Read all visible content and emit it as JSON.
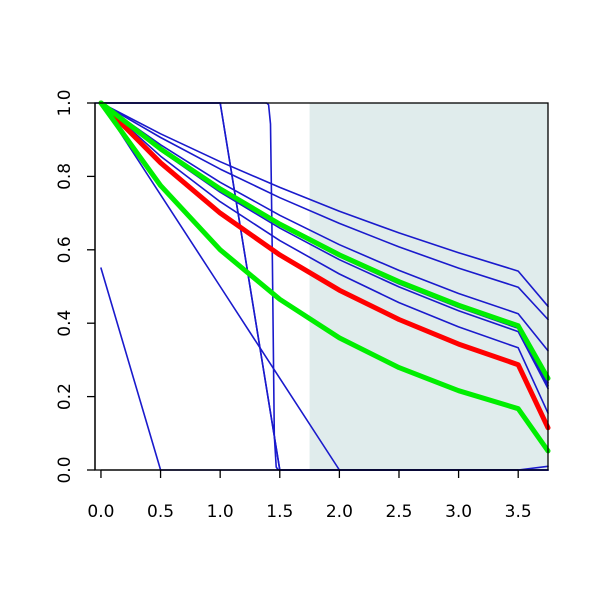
{
  "chart_data": {
    "type": "line",
    "title": "",
    "xlabel": "",
    "ylabel": "",
    "xlim": [
      -0.05,
      3.75
    ],
    "ylim": [
      0.0,
      1.0
    ],
    "x_ticks": [
      0.0,
      0.5,
      1.0,
      1.5,
      2.0,
      2.5,
      3.0,
      3.5
    ],
    "x_tick_labels": [
      "0.0",
      "0.5",
      "1.0",
      "1.5",
      "2.0",
      "2.5",
      "3.0",
      "3.5"
    ],
    "y_ticks": [
      0.0,
      0.2,
      0.4,
      0.6,
      0.8,
      1.0
    ],
    "y_tick_labels": [
      "0.0",
      "0.2",
      "0.4",
      "0.6",
      "0.8",
      "1.0"
    ],
    "grid": false,
    "legend": "none",
    "shaded_region": {
      "x_from": 1.75,
      "x_to": 3.75,
      "color": "#e0ecec"
    },
    "colors": {
      "blue": "#1a1acc",
      "red": "#ff0000",
      "green": "#00ee00"
    },
    "series": [
      {
        "color": "blue",
        "style": "thin",
        "x": [
          0,
          0.5,
          1.0,
          1.5,
          2.0,
          2.5,
          3.0,
          3.5,
          3.75
        ],
        "y": [
          1.0,
          0.8,
          0.6,
          0.4,
          0.2,
          0.0,
          0.0,
          0.0,
          0.0
        ],
        "note_shape": "logistic_step"
      },
      {
        "color": "blue",
        "style": "thin",
        "x": [
          0,
          0.5,
          1.0,
          1.5,
          2.0,
          2.5,
          3.0,
          3.5,
          3.75
        ],
        "y": [
          1.0,
          0.916,
          0.84,
          0.77,
          0.705,
          0.646,
          0.592,
          0.542,
          0.446
        ]
      },
      {
        "color": "blue",
        "style": "thin",
        "x": [
          0,
          0.5,
          1.0,
          1.5,
          2.0,
          2.5,
          3.0,
          3.5,
          3.75
        ],
        "y": [
          1.0,
          0.906,
          0.82,
          0.742,
          0.672,
          0.608,
          0.55,
          0.498,
          0.41
        ]
      },
      {
        "color": "blue",
        "style": "thin",
        "x": [
          0,
          0.5,
          1.0,
          1.5,
          2.0,
          2.5,
          3.0,
          3.5,
          3.75
        ],
        "y": [
          1.0,
          0.886,
          0.784,
          0.694,
          0.614,
          0.544,
          0.481,
          0.426,
          0.325
        ]
      },
      {
        "color": "blue",
        "style": "thin",
        "x": [
          0,
          0.5,
          1.0,
          1.5,
          2.0,
          2.5,
          3.0,
          3.5,
          3.75
        ],
        "y": [
          1.0,
          0.876,
          0.767,
          0.672,
          0.589,
          0.516,
          0.452,
          0.396,
          0.238
        ]
      },
      {
        "color": "blue",
        "style": "thin",
        "x": [
          0,
          0.5,
          1.0,
          1.5,
          2.0,
          2.5,
          3.0,
          3.5,
          3.75
        ],
        "y": [
          1.0,
          0.873,
          0.762,
          0.666,
          0.581,
          0.507,
          0.443,
          0.386,
          0.23
        ]
      },
      {
        "color": "blue",
        "style": "thin",
        "x": [
          0,
          0.5,
          1.0,
          1.5,
          2.0,
          2.5,
          3.0,
          3.5,
          3.75
        ],
        "y": [
          1.0,
          0.87,
          0.757,
          0.659,
          0.573,
          0.499,
          0.434,
          0.377,
          0.222
        ]
      },
      {
        "color": "blue",
        "style": "thin",
        "x": [
          0,
          0.5,
          1.0,
          1.5,
          2.0,
          2.5,
          3.0,
          3.5,
          3.75
        ],
        "y": [
          1.0,
          0.855,
          0.731,
          0.625,
          0.534,
          0.456,
          0.39,
          0.333,
          0.155
        ]
      },
      {
        "color": "blue",
        "style": "thin",
        "x": [
          0,
          0.5,
          1.0,
          1.5,
          2.0,
          2.5,
          3.0,
          3.5,
          3.75
        ],
        "y": [
          1.0,
          0.75,
          0.5,
          0.25,
          0.0,
          0.0,
          0.0,
          0.0,
          0.01
        ]
      },
      {
        "color": "blue",
        "style": "thin",
        "x": [
          0,
          0.5,
          1.0,
          1.5,
          2.0,
          2.5,
          3.0,
          3.5,
          3.75
        ],
        "y": [
          1.0,
          1.0,
          1.0,
          0.0,
          0.0,
          0.0,
          0.0,
          0.0,
          0.0
        ]
      },
      {
        "color": "blue",
        "style": "thin",
        "x": [
          0,
          0.5,
          1.0,
          1.5,
          2.0,
          2.5,
          3.0,
          3.5,
          3.75
        ],
        "y": [
          1.0,
          1.0,
          1.0,
          0.0,
          0.0,
          0.0,
          0.0,
          0.0,
          0.0
        ]
      },
      {
        "color": "blue",
        "style": "thin",
        "x": [
          0,
          0.5,
          1.0,
          1.5,
          2.0,
          2.5,
          3.0,
          3.5,
          3.75
        ],
        "y": [
          0.55,
          0.0,
          0.0,
          0.0,
          0.0,
          0.0,
          0.0,
          0.0,
          0.0
        ]
      },
      {
        "color": "red",
        "style": "thick",
        "x": [
          0,
          0.5,
          1.0,
          1.5,
          2.0,
          2.5,
          3.0,
          3.5,
          3.75
        ],
        "y": [
          1.0,
          0.837,
          0.7,
          0.586,
          0.49,
          0.41,
          0.343,
          0.287,
          0.115
        ]
      },
      {
        "color": "green",
        "style": "thick",
        "x": [
          0,
          0.5,
          1.0,
          1.5,
          2.0,
          2.5,
          3.0,
          3.5,
          3.75
        ],
        "y": [
          1.0,
          0.875,
          0.766,
          0.67,
          0.586,
          0.513,
          0.449,
          0.393,
          0.25
        ]
      },
      {
        "color": "green",
        "style": "thick",
        "x": [
          0,
          0.5,
          1.0,
          1.5,
          2.0,
          2.5,
          3.0,
          3.5,
          3.75
        ],
        "y": [
          1.0,
          0.775,
          0.6,
          0.465,
          0.36,
          0.279,
          0.216,
          0.167,
          0.052
        ]
      }
    ]
  }
}
